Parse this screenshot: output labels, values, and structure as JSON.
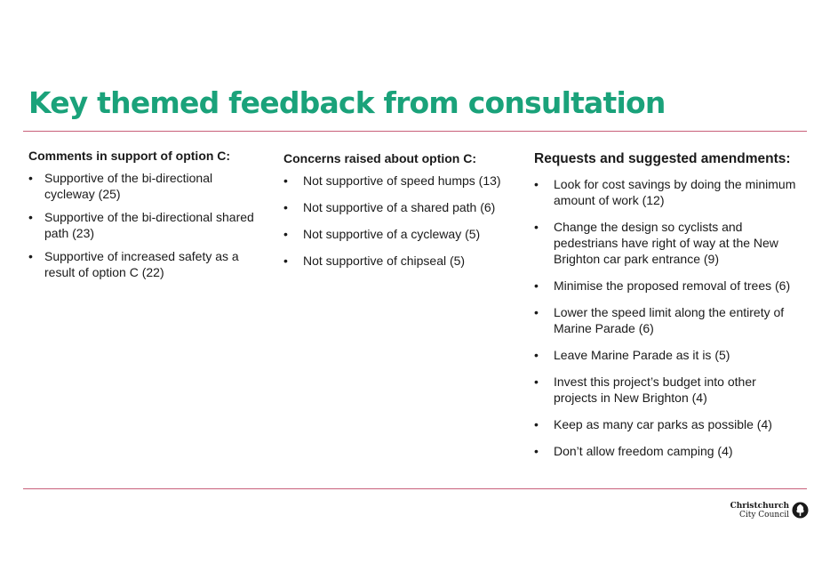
{
  "title": "Key themed feedback from consultation",
  "columns": [
    {
      "heading": "Comments in support of option C:",
      "items": [
        "Supportive of the bi-directional cycleway (25)",
        "Supportive of the bi-directional shared path (23)",
        "Supportive of increased safety as a result of option C (22)"
      ]
    },
    {
      "heading": "Concerns raised about option C:",
      "items": [
        "Not supportive of speed humps (13)",
        "Not supportive of a shared path (6)",
        "Not supportive of a cycleway (5)",
        "Not supportive of chipseal (5)"
      ]
    },
    {
      "heading": "Requests and suggested amendments:",
      "items": [
        "Look for cost savings by doing the minimum amount of work (12)",
        "Change the design so cyclists and pedestrians have right of way at the New Brighton car park entrance (9)",
        "Minimise the proposed removal of trees (6)",
        "Lower the speed limit along the entirety of Marine Parade (6)",
        "Leave Marine Parade as it is (5)",
        "Invest this project’s budget into other projects in New Brighton (4)",
        "Keep as many car parks as possible (4)",
        "Don’t allow freedom camping (4)"
      ]
    }
  ],
  "bullet": "•",
  "logo": {
    "line1": "Christchurch",
    "line2": "City Council",
    "icon": "tree-seal-icon"
  },
  "colors": {
    "title": "#1aa27a",
    "rule": "#c8607a",
    "text": "#1a1a1a"
  }
}
